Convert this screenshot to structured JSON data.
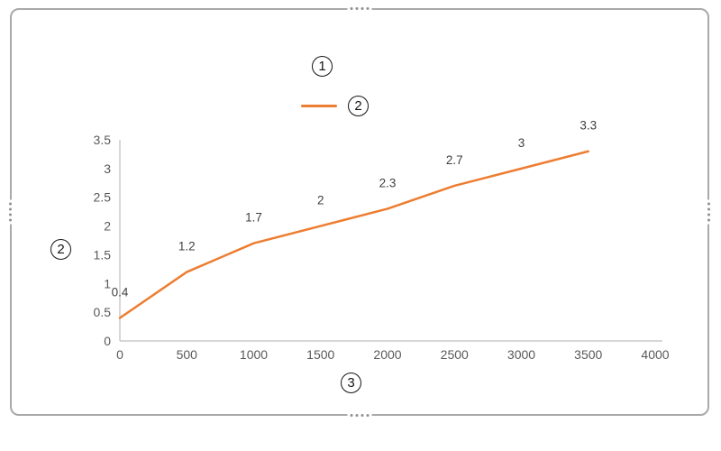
{
  "placeholders": {
    "title_marker": "1",
    "legend_marker": "2",
    "y_axis_marker": "2",
    "x_axis_marker": "3"
  },
  "chart_data": {
    "type": "line",
    "x": [
      0,
      500,
      1000,
      1500,
      2000,
      2500,
      3000,
      3500
    ],
    "values": [
      0.4,
      1.2,
      1.7,
      2,
      2.3,
      2.7,
      3,
      3.3
    ],
    "x_ticks": [
      0,
      500,
      1000,
      1500,
      2000,
      2500,
      3000,
      3500,
      4000
    ],
    "y_ticks": [
      0,
      0.5,
      1,
      1.5,
      2,
      2.5,
      3,
      3.5
    ],
    "xlim": [
      0,
      4000
    ],
    "ylim": [
      0,
      3.5
    ],
    "title": "",
    "xlabel": "",
    "ylabel": "",
    "legend_position": "top",
    "grid": false,
    "data_labels_visible": true,
    "line_color": "#ED7D31",
    "axis_color": "#BFBFBF",
    "tick_color": "#595959",
    "data_label_color": "#404040"
  }
}
